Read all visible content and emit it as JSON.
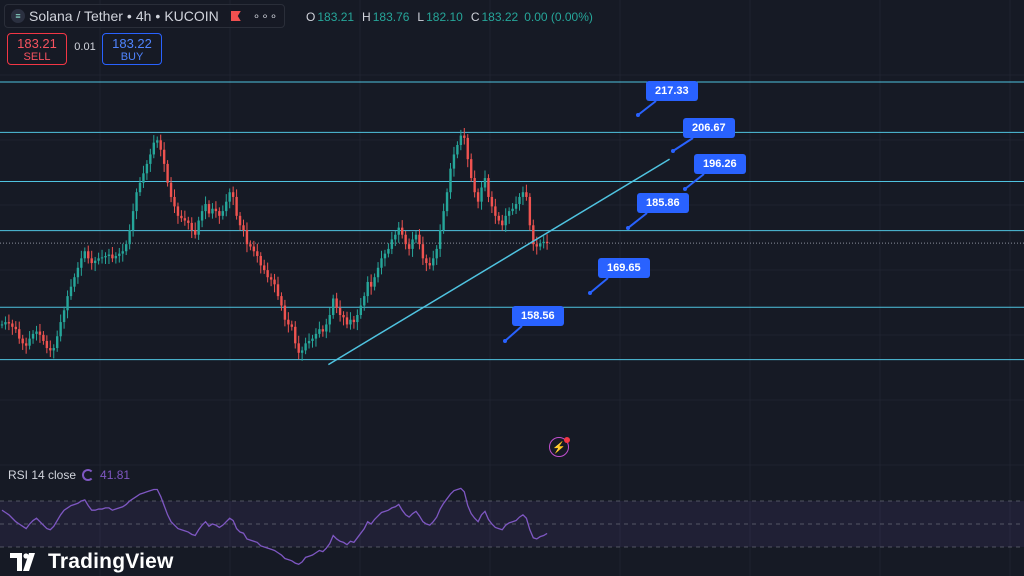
{
  "header": {
    "symbol": "Solana / Tether",
    "interval": "4h",
    "exchange": "KUCOIN",
    "separator": "•",
    "icon": "solana-icon",
    "more_icon": "more-dots-icon",
    "flag_icon": "flag-icon"
  },
  "ohlc": {
    "open_key": "O",
    "open": "183.21",
    "high_key": "H",
    "high": "183.76",
    "low_key": "L",
    "low": "182.10",
    "close_key": "C",
    "close": "183.22",
    "change": "0.00 (0.00%)"
  },
  "trade": {
    "sell_price": "183.21",
    "sell_label": "SELL",
    "spread": "0.01",
    "buy_price": "183.22",
    "buy_label": "BUY"
  },
  "indicator": {
    "label": "RSI 14 close",
    "value": "41.81"
  },
  "branding": {
    "logo_text": "TradingView"
  },
  "colors": {
    "background": "#161a25",
    "up": "#26a69a",
    "down": "#ef5350",
    "level_line": "#4fc3e0",
    "callout": "#2962ff",
    "rsi_line": "#7e57c2"
  },
  "chart_data": {
    "type": "candlestick",
    "ylim": [
      150,
      222
    ],
    "horizontal_levels": [
      217.33,
      206.67,
      196.26,
      185.86,
      169.65,
      158.56
    ],
    "level_labels": [
      "217.33",
      "206.67",
      "196.26",
      "185.86",
      "169.65",
      "158.56"
    ],
    "trendline": {
      "from_index": 83,
      "from_price": 157.5,
      "to_index": 168,
      "to_price": 201.0
    },
    "close_series": [
      166,
      166.5,
      166.2,
      165.5,
      165,
      163,
      162,
      161.5,
      163,
      164,
      164.5,
      163.8,
      162.5,
      161,
      160.5,
      161,
      163.5,
      166.5,
      169,
      172,
      174,
      176,
      178,
      180,
      181.5,
      180,
      179,
      179.5,
      180,
      180.2,
      180.5,
      180.8,
      180,
      180.5,
      181,
      181.5,
      183,
      186,
      190,
      194,
      196,
      198,
      200,
      202,
      204.5,
      205,
      203,
      200,
      196,
      193,
      191,
      189,
      188.5,
      188,
      187.5,
      186,
      185,
      188,
      190,
      191.5,
      189.5,
      190.5,
      190,
      189,
      190,
      192,
      194,
      193,
      189,
      187,
      186,
      183,
      182.5,
      181.5,
      180.5,
      178.5,
      177.5,
      176,
      175.5,
      174.5,
      172,
      170,
      167,
      166,
      165.5,
      162,
      160,
      160.5,
      162,
      162.5,
      163,
      164,
      165,
      164.5,
      166,
      168,
      171.5,
      169.5,
      168,
      167.5,
      166,
      167,
      166.5,
      168,
      170,
      172,
      175,
      174,
      176,
      178,
      180,
      181,
      182,
      184,
      185,
      186.5,
      185,
      183,
      182,
      184,
      185,
      183,
      180,
      179,
      178.5,
      180,
      182,
      186,
      190,
      194,
      199,
      202,
      204,
      206,
      205.5,
      201,
      197,
      194,
      192,
      195,
      197,
      193,
      191,
      189,
      188,
      187,
      189,
      190,
      190.5,
      191.5,
      193,
      194,
      193,
      187,
      183,
      182.5,
      183.2,
      183.5,
      183.22
    ],
    "rsi_series": [
      62,
      60,
      58,
      55,
      52,
      50,
      48,
      46,
      50,
      53,
      55,
      52,
      49,
      46,
      45,
      48,
      53,
      58,
      62,
      64,
      66,
      67,
      68,
      70,
      71,
      66,
      62,
      62,
      63,
      63,
      64,
      64,
      62,
      63,
      64,
      65,
      67,
      70,
      72,
      74,
      76,
      77,
      78,
      79,
      80,
      80,
      74,
      66,
      58,
      52,
      49,
      46,
      45,
      44,
      43,
      41,
      40,
      45,
      49,
      52,
      48,
      50,
      49,
      47,
      49,
      52,
      55,
      53,
      46,
      43,
      42,
      37,
      36,
      35,
      34,
      31,
      30,
      29,
      28,
      27,
      25,
      23,
      20,
      19,
      18,
      16,
      15,
      17,
      21,
      22,
      23,
      25,
      27,
      26,
      29,
      33,
      40,
      37,
      35,
      34,
      32,
      35,
      34,
      38,
      42,
      46,
      52,
      50,
      54,
      57,
      60,
      61,
      62,
      64,
      65,
      67,
      62,
      58,
      56,
      59,
      61,
      57,
      52,
      50,
      49,
      52,
      56,
      63,
      68,
      72,
      76,
      79,
      80,
      81,
      78,
      66,
      59,
      55,
      52,
      58,
      61,
      54,
      50,
      47,
      46,
      45,
      49,
      51,
      52,
      53,
      56,
      58,
      55,
      45,
      38,
      37,
      39,
      40,
      41.81
    ],
    "rsi_ylim": [
      10,
      90
    ],
    "rsi_band": [
      30,
      70
    ]
  }
}
